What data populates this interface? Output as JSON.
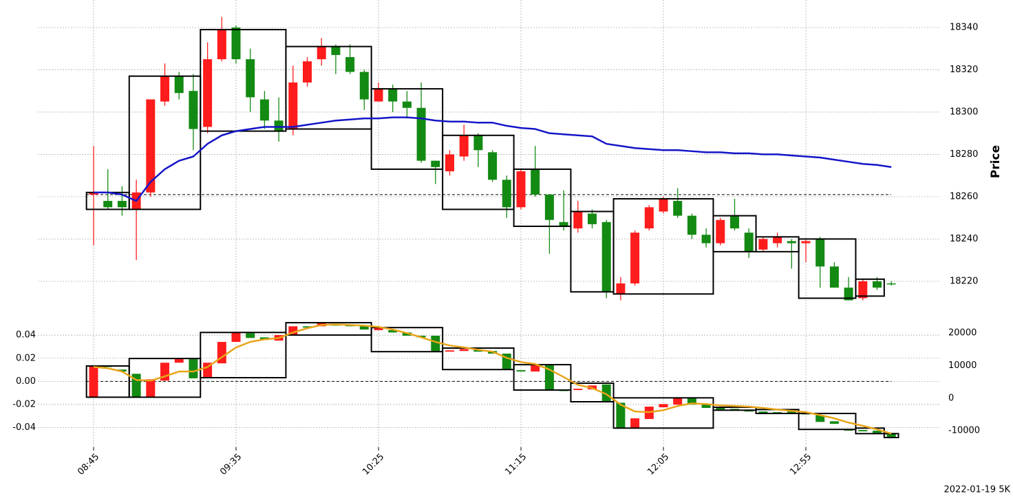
{
  "chart_data": [
    {
      "type": "candlestick",
      "categories": [
        "08:45",
        null,
        null,
        null,
        null,
        null,
        null,
        null,
        null,
        null,
        "09:35",
        null,
        null,
        null,
        null,
        null,
        null,
        null,
        null,
        null,
        "10:25",
        null,
        null,
        null,
        null,
        null,
        null,
        null,
        null,
        null,
        "11:15",
        null,
        null,
        null,
        null,
        null,
        null,
        null,
        null,
        null,
        "12:05",
        null,
        null,
        null,
        null,
        null,
        null,
        null,
        null,
        null,
        "12:55",
        null,
        null,
        null,
        null,
        null,
        null
      ],
      "open": [
        18261,
        18258,
        18258,
        18254,
        18262,
        18305,
        18317,
        18310,
        18293,
        18325,
        18340,
        18325,
        18306,
        18296,
        18292,
        18314,
        18325,
        18331,
        18326,
        18319,
        18305,
        18311,
        18305,
        18302,
        18277,
        18272,
        18279,
        18289,
        18281,
        18268,
        18255,
        18273,
        18261,
        18248,
        18245,
        18252,
        18248,
        18214,
        18219,
        18245,
        18253,
        18258,
        18251,
        18242,
        18238,
        18251,
        18243,
        18235,
        18238,
        18239,
        18238,
        18240,
        18227,
        18217,
        18212,
        18220,
        18219
      ],
      "high": [
        18284,
        18273,
        18265,
        18268,
        18306,
        18323,
        18319,
        18318,
        18333,
        18345,
        18341,
        18330,
        18310,
        18307,
        18322,
        18326,
        18335,
        18332,
        18332,
        18320,
        18314,
        18313,
        18310,
        18314,
        18277,
        18282,
        18294,
        18290,
        18282,
        18270,
        18273,
        18284,
        18261,
        18263,
        18258,
        18254,
        18249,
        18222,
        18244,
        18256,
        18260,
        18264,
        18252,
        18245,
        18250,
        18259,
        18245,
        18241,
        18243,
        18240,
        18240,
        18241,
        18229,
        18222,
        18221,
        18222,
        18220
      ],
      "low": [
        18237,
        18254,
        18251,
        18230,
        18260,
        18303,
        18306,
        18282,
        18290,
        18324,
        18323,
        18300,
        18292,
        18286,
        18289,
        18312,
        18322,
        18318,
        18318,
        18301,
        18305,
        18300,
        18297,
        18276,
        18266,
        18270,
        18277,
        18274,
        18267,
        18250,
        18254,
        18260,
        18233,
        18244,
        18243,
        18245,
        18212,
        18211,
        18218,
        18244,
        18252,
        18250,
        18240,
        18236,
        18237,
        18244,
        18231,
        18234,
        18236,
        18226,
        18229,
        18217,
        18217,
        18211,
        18211,
        18216,
        18218
      ],
      "close": [
        18262,
        18255,
        18255,
        18262,
        18306,
        18317,
        18309,
        18292,
        18325,
        18339,
        18325,
        18307,
        18296,
        18291,
        18314,
        18324,
        18331,
        18327,
        18319,
        18306,
        18311,
        18305,
        18302,
        18277,
        18274,
        18280,
        18289,
        18282,
        18268,
        18255,
        18272,
        18261,
        18249,
        18246,
        18253,
        18247,
        18215,
        18219,
        18243,
        18255,
        18259,
        18251,
        18242,
        18238,
        18249,
        18245,
        18234,
        18240,
        18241,
        18238,
        18239,
        18227,
        18217,
        18211,
        18220,
        18217,
        18219
      ],
      "up_color": "#ff1c1c",
      "down_color": "#138a13",
      "line": {
        "color": "#1414c8",
        "values": [
          18262,
          18262,
          18261,
          18258,
          18267,
          18273,
          18277,
          18279,
          18285,
          18289,
          18291,
          18292,
          18293,
          18293,
          18293,
          18294,
          18295,
          18296,
          18296.5,
          18297,
          18297,
          18297.5,
          18297.5,
          18297,
          18296,
          18295.5,
          18295.5,
          18295,
          18295,
          18293.5,
          18292.5,
          18292,
          18290,
          18289.5,
          18289,
          18288.5,
          18285,
          18284,
          18283,
          18282.5,
          18282,
          18282,
          18281.5,
          18281,
          18281,
          18280.5,
          18280.5,
          18280,
          18280,
          18279.5,
          18279,
          18278.5,
          18277.5,
          18276.5,
          18275.5,
          18275,
          18274
        ]
      },
      "boxes": [
        {
          "start": 0,
          "end": 2,
          "high": 18262,
          "low": 18254
        },
        {
          "start": 3,
          "end": 7,
          "high": 18317,
          "low": 18254
        },
        {
          "start": 8,
          "end": 13,
          "high": 18339,
          "low": 18291
        },
        {
          "start": 14,
          "end": 19,
          "high": 18331,
          "low": 18292
        },
        {
          "start": 20,
          "end": 24,
          "high": 18311,
          "low": 18273
        },
        {
          "start": 25,
          "end": 29,
          "high": 18289,
          "low": 18254
        },
        {
          "start": 30,
          "end": 33,
          "high": 18273,
          "low": 18246
        },
        {
          "start": 34,
          "end": 36,
          "high": 18253,
          "low": 18215
        },
        {
          "start": 37,
          "end": 43,
          "high": 18259,
          "low": 18214
        },
        {
          "start": 44,
          "end": 46,
          "high": 18251,
          "low": 18234
        },
        {
          "start": 47,
          "end": 49,
          "high": 18241,
          "low": 18234
        },
        {
          "start": 50,
          "end": 53,
          "high": 18240,
          "low": 18212
        },
        {
          "start": 54,
          "end": 55,
          "high": 18221,
          "low": 18213
        }
      ],
      "reference_line": 18261,
      "ylim": [
        18205,
        18353
      ],
      "yticks": [
        18220,
        18240,
        18260,
        18280,
        18300,
        18320,
        18340
      ],
      "y_label": "Price",
      "grid": true
    },
    {
      "type": "candlestick",
      "open": [
        300,
        9900,
        8800,
        7500,
        300,
        5400,
        10900,
        12000,
        6300,
        10700,
        17300,
        20000,
        18700,
        17700,
        19400,
        22100,
        22100,
        22800,
        22500,
        22100,
        20900,
        20900,
        20200,
        19200,
        19200,
        14300,
        14500,
        14900,
        14500,
        13700,
        8600,
        8200,
        10300,
        2500,
        2500,
        2700,
        4200,
        -1400,
        -9200,
        -6400,
        -2800,
        -2000,
        100,
        -2000,
        -3000,
        -3300,
        -3500,
        -4100,
        -4300,
        -4100,
        -4500,
        -5200,
        -7100,
        -9600,
        -9800,
        -10000,
        -10900
      ],
      "close": [
        9900,
        9700,
        8200,
        300,
        5800,
        10900,
        12000,
        6100,
        10900,
        17300,
        20200,
        18500,
        17900,
        19400,
        22100,
        21700,
        23200,
        22300,
        22100,
        21100,
        21500,
        20200,
        19200,
        18700,
        14500,
        14700,
        15100,
        14300,
        13700,
        8800,
        8200,
        10100,
        2500,
        2500,
        2900,
        3900,
        -1100,
        -9200,
        -6200,
        -2600,
        -1800,
        100,
        -2000,
        -3000,
        -3500,
        -3700,
        -4100,
        -4700,
        -4700,
        -4500,
        -5000,
        -7300,
        -7900,
        -10000,
        -10200,
        -10700,
        -11900
      ],
      "axis": "y2",
      "up_color": "#ff1c1c",
      "down_color": "#138a13",
      "line": {
        "color": "#e8a418",
        "axis": "y2",
        "values": [
          9600,
          9200,
          8200,
          5600,
          5400,
          6700,
          8200,
          8200,
          9600,
          12600,
          15600,
          17300,
          18100,
          18500,
          20200,
          21500,
          22500,
          22700,
          22500,
          22300,
          21900,
          21100,
          20000,
          18700,
          17300,
          16200,
          15600,
          14900,
          14300,
          12400,
          11100,
          10500,
          8800,
          6500,
          4100,
          3100,
          1200,
          -2000,
          -4100,
          -4300,
          -3700,
          -2400,
          -1600,
          -1800,
          -2200,
          -2400,
          -2600,
          -3000,
          -3500,
          -3900,
          -4300,
          -5200,
          -6200,
          -7500,
          -8500,
          -9600,
          -10900
        ]
      },
      "boxes": [
        {
          "start": 0,
          "end": 2,
          "high": 9900,
          "low": 300
        },
        {
          "start": 3,
          "end": 7,
          "high": 12200,
          "low": 300
        },
        {
          "start": 8,
          "end": 13,
          "high": 20200,
          "low": 6300
        },
        {
          "start": 14,
          "end": 19,
          "high": 23200,
          "low": 19400
        },
        {
          "start": 20,
          "end": 24,
          "high": 21700,
          "low": 14300
        },
        {
          "start": 25,
          "end": 29,
          "high": 15400,
          "low": 8800
        },
        {
          "start": 30,
          "end": 33,
          "high": 10300,
          "low": 2500
        },
        {
          "start": 34,
          "end": 36,
          "high": 4600,
          "low": -1100
        },
        {
          "start": 37,
          "end": 43,
          "high": 100,
          "low": -9200
        },
        {
          "start": 44,
          "end": 46,
          "high": -2800,
          "low": -3700
        },
        {
          "start": 47,
          "end": 49,
          "high": -3500,
          "low": -4700
        },
        {
          "start": 50,
          "end": 53,
          "high": -4700,
          "low": -9600
        },
        {
          "start": 54,
          "end": 55,
          "high": -9200,
          "low": -10900
        },
        {
          "start": 56,
          "end": 56,
          "high": -10900,
          "low": -12100
        }
      ],
      "zero_line": 0,
      "ylim": [
        -0.054,
        0.055
      ],
      "yticks": [
        -0.04,
        -0.02,
        {
          "value": 0,
          "label": "0.00"
        },
        0.02,
        0.04
      ],
      "y2lim": [
        -14000,
        24700
      ],
      "y2ticks": [
        -10000,
        0,
        10000,
        20000
      ],
      "grid": true
    }
  ],
  "footer": "2022-01-19 5K"
}
